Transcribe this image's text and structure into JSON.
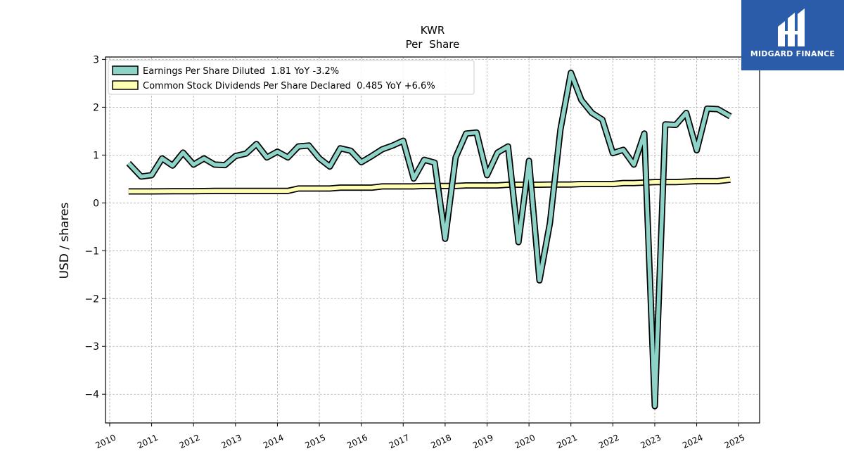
{
  "brand": {
    "name": "MIDGARD FINANCE",
    "color": "#2a5caa"
  },
  "chart_data": {
    "type": "line",
    "title": "KWR",
    "subtitle": "Per  Share",
    "xlabel": "",
    "ylabel": "USD / shares",
    "ylim": [
      -4.6,
      3.05
    ],
    "xlim": [
      2009.9,
      2025.5
    ],
    "yticks": [
      -4,
      -3,
      -2,
      -1,
      0,
      1,
      2,
      3
    ],
    "ytick_labels": [
      "−4",
      "−3",
      "−2",
      "−1",
      "0",
      "1",
      "2",
      "3"
    ],
    "xticks": [
      2010,
      2011,
      2012,
      2013,
      2014,
      2015,
      2016,
      2017,
      2018,
      2019,
      2020,
      2021,
      2022,
      2023,
      2024,
      2025
    ],
    "xtick_labels": [
      "2010",
      "2011",
      "2012",
      "2013",
      "2014",
      "2015",
      "2016",
      "2017",
      "2018",
      "2019",
      "2020",
      "2021",
      "2022",
      "2023",
      "2024",
      "2025"
    ],
    "grid": true,
    "legend_position": "top-left",
    "series": [
      {
        "name": "Earnings Per Share Diluted  1.81 YoY -3.2%",
        "color": "#8dd3c7",
        "x": [
          2010.45,
          2010.75,
          2011.0,
          2011.25,
          2011.5,
          2011.75,
          2012.0,
          2012.25,
          2012.5,
          2012.75,
          2013.0,
          2013.25,
          2013.5,
          2013.75,
          2014.0,
          2014.25,
          2014.5,
          2014.75,
          2015.0,
          2015.25,
          2015.5,
          2015.75,
          2016.0,
          2016.25,
          2016.5,
          2016.75,
          2017.0,
          2017.25,
          2017.5,
          2017.75,
          2018.0,
          2018.25,
          2018.5,
          2018.75,
          2019.0,
          2019.25,
          2019.5,
          2019.75,
          2020.0,
          2020.25,
          2020.5,
          2020.75,
          2021.0,
          2021.25,
          2021.5,
          2021.75,
          2022.0,
          2022.25,
          2022.5,
          2022.75,
          2023.0,
          2023.25,
          2023.5,
          2023.75,
          2024.0,
          2024.25,
          2024.5,
          2024.8
        ],
        "values": [
          0.83,
          0.55,
          0.58,
          0.93,
          0.78,
          1.05,
          0.8,
          0.93,
          0.8,
          0.79,
          0.98,
          1.03,
          1.23,
          0.95,
          1.07,
          0.95,
          1.18,
          1.2,
          0.93,
          0.76,
          1.14,
          1.09,
          0.85,
          0.98,
          1.12,
          1.2,
          1.3,
          0.51,
          0.9,
          0.84,
          -0.75,
          0.95,
          1.45,
          1.47,
          0.58,
          1.05,
          1.18,
          -0.82,
          0.88,
          -1.62,
          -0.42,
          1.53,
          2.72,
          2.15,
          1.88,
          1.74,
          1.04,
          1.11,
          0.8,
          1.45,
          -4.25,
          1.64,
          1.63,
          1.88,
          1.1,
          1.97,
          1.96,
          1.81
        ]
      },
      {
        "name": "Common Stock Dividends Per Share Declared  0.485 YoY +6.6%",
        "color": "#ffffb3",
        "x": [
          2010.45,
          2011.0,
          2011.5,
          2012.0,
          2012.5,
          2013.0,
          2013.5,
          2014.0,
          2014.25,
          2014.5,
          2015.0,
          2015.25,
          2015.5,
          2016.0,
          2016.25,
          2016.5,
          2017.0,
          2017.25,
          2017.5,
          2018.0,
          2018.25,
          2018.5,
          2019.0,
          2019.25,
          2019.5,
          2020.0,
          2020.25,
          2020.5,
          2021.0,
          2021.25,
          2021.5,
          2022.0,
          2022.25,
          2022.5,
          2023.0,
          2023.25,
          2023.5,
          2024.0,
          2024.25,
          2024.5,
          2024.8
        ],
        "values": [
          0.24,
          0.24,
          0.245,
          0.245,
          0.25,
          0.25,
          0.25,
          0.25,
          0.25,
          0.3,
          0.3,
          0.3,
          0.32,
          0.32,
          0.32,
          0.345,
          0.345,
          0.345,
          0.355,
          0.355,
          0.355,
          0.365,
          0.365,
          0.365,
          0.38,
          0.38,
          0.38,
          0.385,
          0.385,
          0.395,
          0.395,
          0.395,
          0.415,
          0.415,
          0.435,
          0.435,
          0.435,
          0.455,
          0.455,
          0.455,
          0.485
        ]
      }
    ]
  }
}
